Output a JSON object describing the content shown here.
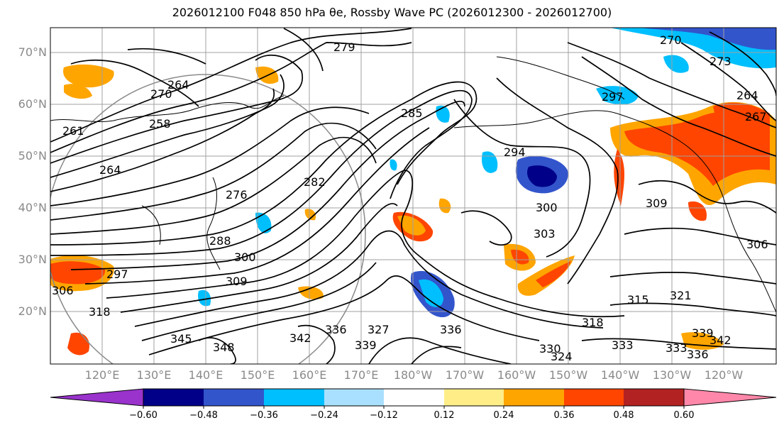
{
  "title": "2026012100 F048 850 hPa θe, Rossby Wave PC (2026012300 - 2026012700)",
  "map": {
    "projection": "lat-lon",
    "lat_labels": [
      "70°N",
      "60°N",
      "50°N",
      "40°N",
      "30°N",
      "20°N"
    ],
    "lon_labels": [
      "120°E",
      "130°E",
      "140°E",
      "150°E",
      "160°E",
      "170°E",
      "180°W",
      "170°W",
      "160°W",
      "150°W",
      "140°W",
      "130°W",
      "120°W"
    ],
    "contour_labels": [
      "279",
      "270",
      "264",
      "258",
      "261",
      "264",
      "276",
      "282",
      "285",
      "294",
      "297",
      "270",
      "273",
      "264",
      "267",
      "300",
      "309",
      "303",
      "288",
      "300",
      "309",
      "318",
      "306",
      "297",
      "327",
      "336",
      "339",
      "336",
      "333",
      "345",
      "342",
      "348",
      "315",
      "321",
      "333",
      "336",
      "342",
      "339",
      "306",
      "330",
      "324",
      "318"
    ],
    "contour_color": "#000000",
    "coast_color": "#000000",
    "grid_color": "#a0a0a0"
  },
  "colorbar": {
    "ticks": [
      "−0.60",
      "−0.48",
      "−0.36",
      "−0.24",
      "−0.12",
      "0.12",
      "0.24",
      "0.36",
      "0.48",
      "0.60"
    ],
    "colors": [
      "#9933cc",
      "#000088",
      "#3355cc",
      "#00bfff",
      "#aae0ff",
      "#ffffff",
      "#ffee88",
      "#ffa500",
      "#ff4500",
      "#b22222",
      "#ff88aa"
    ],
    "extend": "both"
  }
}
